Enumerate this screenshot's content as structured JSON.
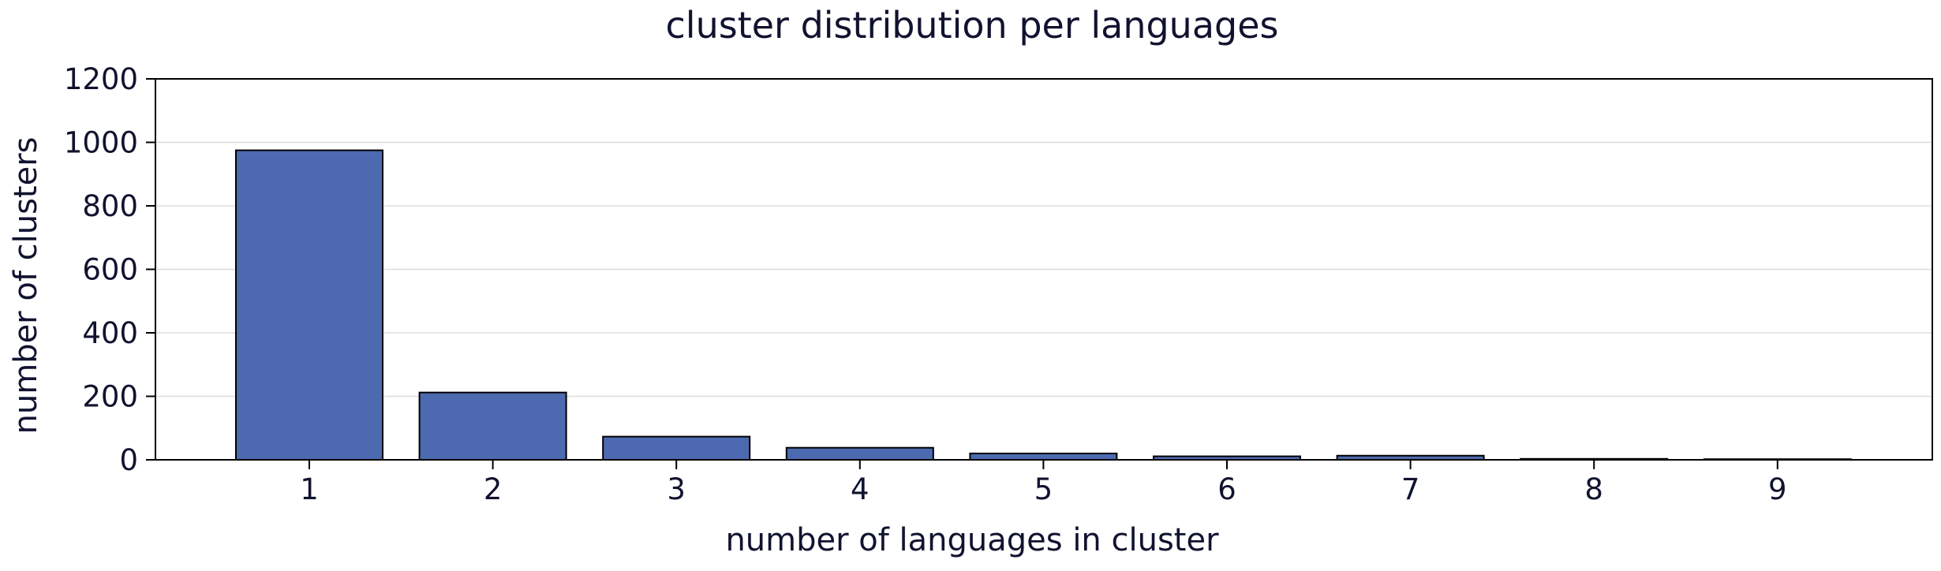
{
  "chart_data": {
    "type": "bar",
    "title": "cluster distribution per languages",
    "xlabel": "number of languages in cluster",
    "ylabel": "number of clusters",
    "categories": [
      "1",
      "2",
      "3",
      "4",
      "5",
      "6",
      "7",
      "8",
      "9"
    ],
    "values": [
      975,
      212,
      73,
      38,
      20,
      11,
      13,
      3,
      2
    ],
    "ylim": [
      0,
      1200
    ],
    "yticks": [
      0,
      200,
      400,
      600,
      800,
      1000,
      1200
    ],
    "grid": "horizontal",
    "legend": "none",
    "colors": {
      "bar_fill": "#4d6ab1",
      "bar_edge": "#000000",
      "text": "#10132f",
      "grid": "#dddddd",
      "axes": "#000000"
    }
  }
}
